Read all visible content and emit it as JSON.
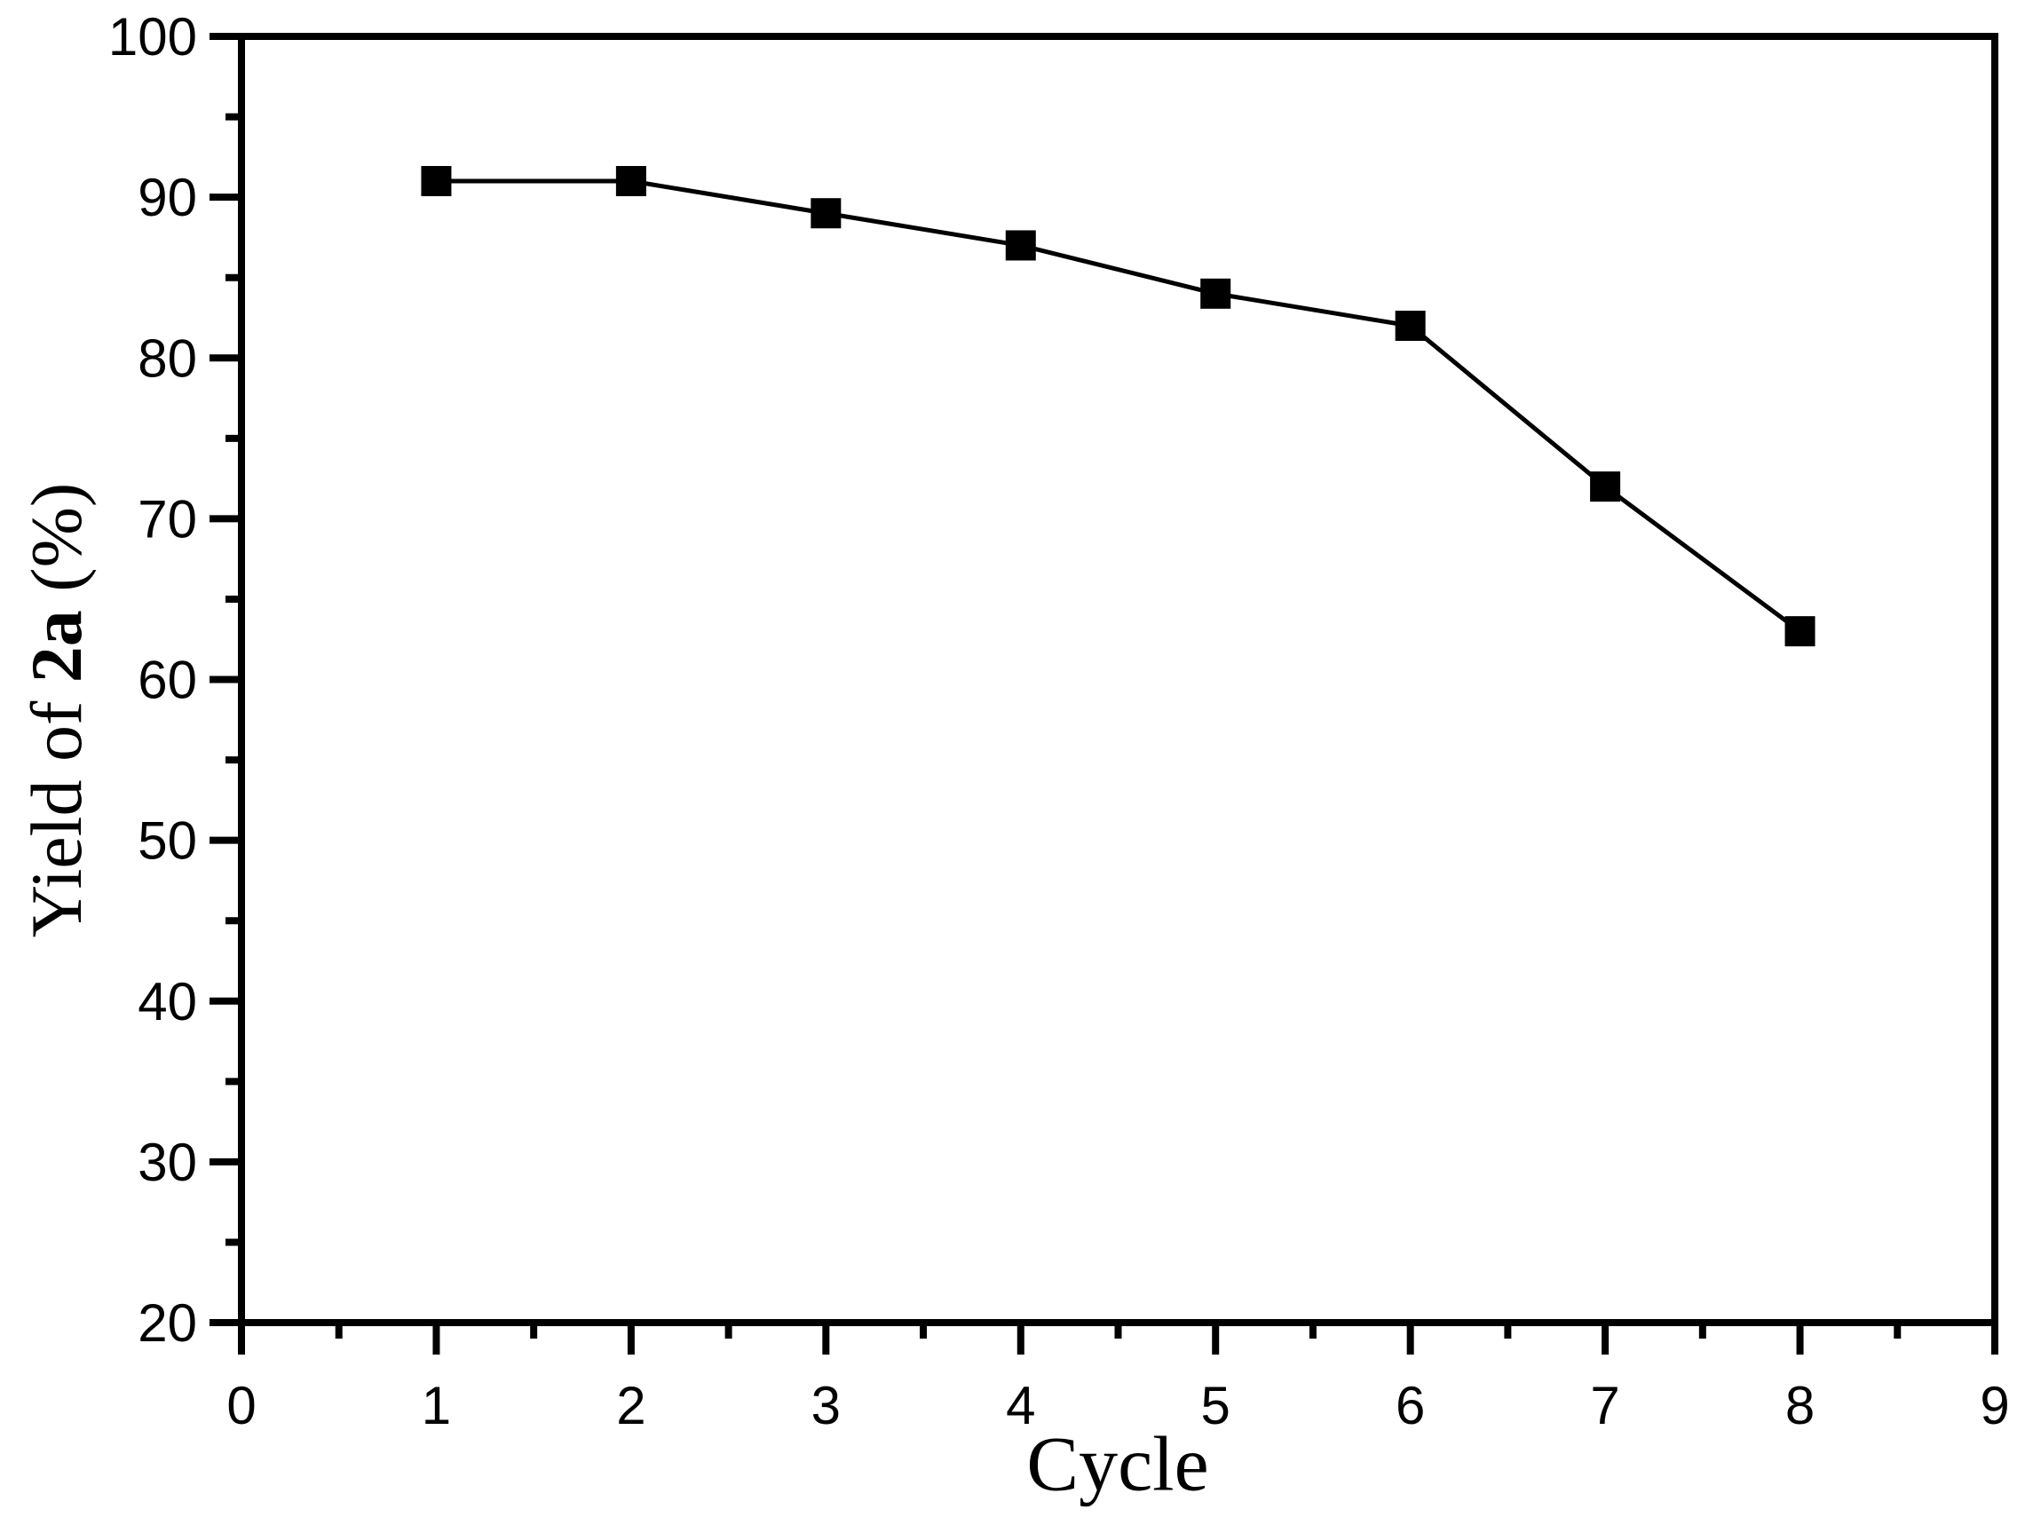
{
  "chart_data": {
    "type": "line",
    "title": "",
    "xlabel": "Cycle",
    "ylabel": "Yield of 2a (%)",
    "ylabel_parts": [
      {
        "text": "Yield of ",
        "bold": false
      },
      {
        "text": "2a",
        "bold": true
      },
      {
        "text": " (%)",
        "bold": false
      }
    ],
    "x": [
      1,
      2,
      3,
      4,
      5,
      6,
      7,
      8
    ],
    "series": [
      {
        "name": "Yield of 2a",
        "values": [
          91,
          91,
          89,
          87,
          84,
          82,
          72,
          63
        ]
      }
    ],
    "xlim": [
      0,
      9
    ],
    "ylim": [
      20,
      100
    ],
    "x_major_ticks": [
      0,
      1,
      2,
      3,
      4,
      5,
      6,
      7,
      8,
      9
    ],
    "x_tick_labels": [
      "0",
      "1",
      "2",
      "3",
      "4",
      "5",
      "6",
      "7",
      "8",
      "9"
    ],
    "x_minor_step": 0.5,
    "y_major_ticks": [
      20,
      30,
      40,
      50,
      60,
      70,
      80,
      90,
      100
    ],
    "y_tick_labels": [
      "20",
      "30",
      "40",
      "50",
      "60",
      "70",
      "80",
      "90",
      "100"
    ],
    "y_minor_step": 5,
    "grid": false,
    "legend": "none",
    "marker": "filled-square",
    "frame": "full-box",
    "tick_direction": "out",
    "colors": {
      "line": "#000000",
      "marker": "#000000",
      "axis": "#000000",
      "text": "#000000",
      "background": "#ffffff"
    }
  }
}
